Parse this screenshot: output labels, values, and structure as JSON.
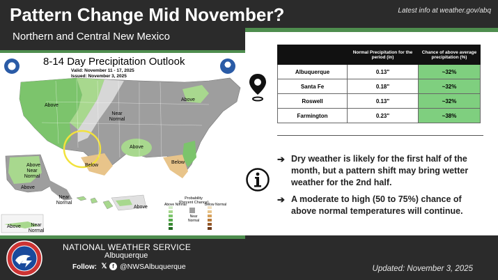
{
  "header": {
    "title": "Pattern Change Mid November?",
    "subtitle": "Northern and Central New Mexico",
    "latest_info": "Latest info at weather.gov/abq"
  },
  "map": {
    "title": "8-14 Day Precipitation Outlook",
    "valid": "Valid:  November 11 - 17, 2025",
    "issued": "Issued:  November 3, 2025",
    "labels": {
      "above_west": "Above",
      "near_normal_center": "Near Normal",
      "above_northeast": "Above",
      "above_southeast": "Above",
      "below_south": "Below",
      "below_southeast": "Below",
      "alaska_above_1": "Above",
      "alaska_near_normal": "Near Normal",
      "alaska_above_2": "Above",
      "alaska_near_normal_2": "Near Normal",
      "alaska_above_3": "Above",
      "hawaii_above": "Above",
      "hawaii_near": "Near Normal",
      "legend_title": "Probability (Percent Chance)",
      "legend_above": "Above Normal",
      "legend_below": "Below Normal",
      "legend_near": "Near Normal"
    }
  },
  "table": {
    "headers": [
      "",
      "Normal Precipitation for the period (in)",
      "Chance of above average precipitation (%)"
    ],
    "rows": [
      {
        "city": "Albuquerque",
        "normal": "0.13\"",
        "chance": "~32%"
      },
      {
        "city": "Santa Fe",
        "normal": "0.18\"",
        "chance": "~32%"
      },
      {
        "city": "Roswell",
        "normal": "0.13\"",
        "chance": "~32%"
      },
      {
        "city": "Farmington",
        "normal": "0.23\"",
        "chance": "~38%"
      }
    ]
  },
  "bullets": [
    "Dry weather is likely for the first half of the month, but a pattern shift may bring wetter weather for the 2nd half.",
    "A moderate to high (50 to 75%) chance of above normal temperatures will continue."
  ],
  "footer": {
    "org": "NATIONAL WEATHER SERVICE",
    "office": "Albuquerque",
    "follow_label": "Follow:",
    "handle": "@NWSAlbuquerque",
    "updated": "Updated: November 3, 2025"
  },
  "colors": {
    "accent_green": "#4e8d4e",
    "above_light": "#a8d88e",
    "above_mid": "#7cc46c",
    "near_normal": "#9a9a9a",
    "below": "#e8c48a"
  }
}
